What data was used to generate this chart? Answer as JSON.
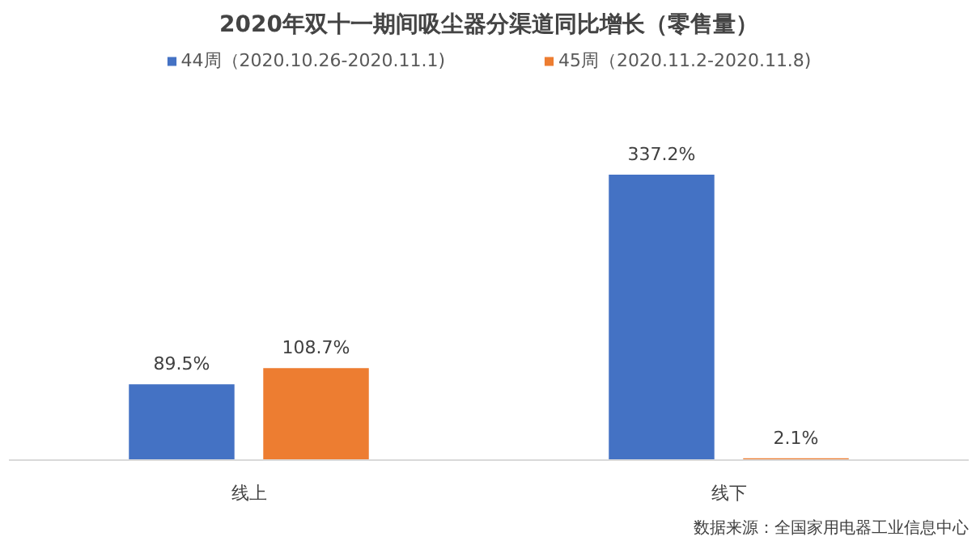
{
  "chart_data": {
    "type": "bar",
    "title": "2020年双十一期间吸尘器分渠道同比增长（零售量）",
    "categories": [
      "线上",
      "线下"
    ],
    "series": [
      {
        "name": "44周（2020.10.26-2020.11.1)",
        "color": "#4472c4",
        "values": [
          89.5,
          337.2
        ],
        "value_labels": [
          "89.5%",
          "337.2%"
        ]
      },
      {
        "name": "45周（2020.11.2-2020.11.8)",
        "color": "#ed7d31",
        "values": [
          108.7,
          2.1
        ],
        "value_labels": [
          "108.7%",
          "2.1%"
        ]
      }
    ],
    "legend": "top",
    "annotations": [
      "数据来源：全国家用电器工业信息中心"
    ]
  }
}
